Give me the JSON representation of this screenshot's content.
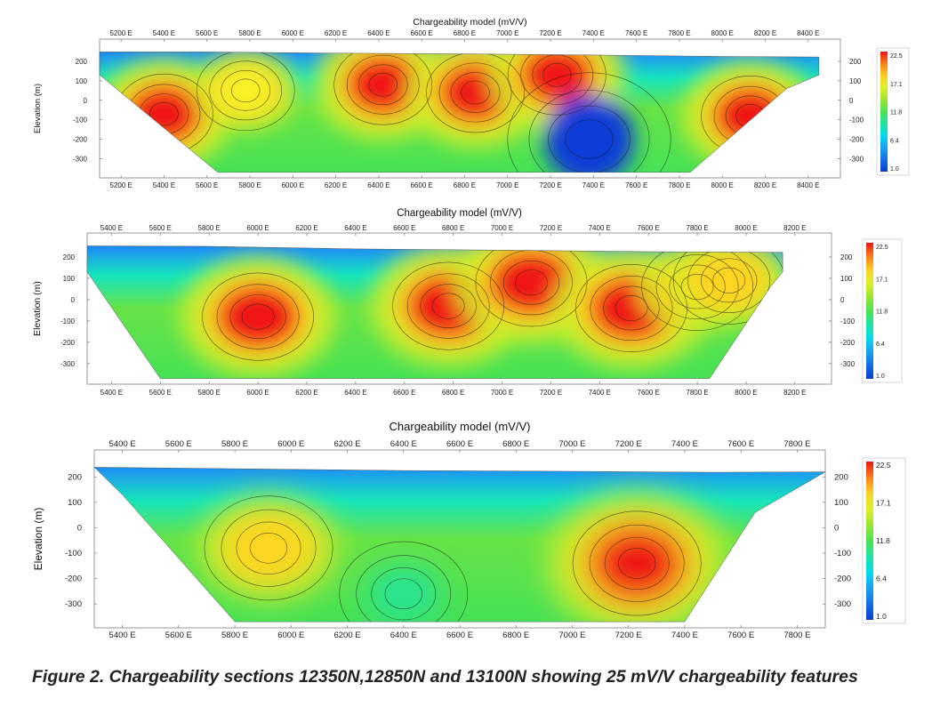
{
  "chart_data": [
    {
      "type": "heatmap",
      "title": "Chargeability model (mV/V)",
      "ylabel": "Elevation (m)",
      "xlim": [
        5100,
        8550
      ],
      "ylim": [
        -380,
        250
      ],
      "x_ticks": [
        "5200 E",
        "5400 E",
        "5600 E",
        "5800 E",
        "6000 E",
        "6200 E",
        "6400 E",
        "6600 E",
        "6800 E",
        "7000 E",
        "7200 E",
        "7400 E",
        "7600 E",
        "7800 E",
        "8000 E",
        "8200 E",
        "8400 E"
      ],
      "y_ticks": [
        "200",
        "100",
        "0",
        "-100",
        "-200",
        "-300"
      ],
      "colorbar": {
        "min": 1.0,
        "max": 22.5,
        "ticks": [
          "22.5",
          "17.1",
          "11.8",
          "6.4",
          "1.0"
        ]
      },
      "surface": [
        [
          5100,
          248
        ],
        [
          5600,
          248
        ],
        [
          6200,
          242
        ],
        [
          6800,
          238
        ],
        [
          7400,
          232
        ],
        [
          8000,
          225
        ],
        [
          8450,
          222
        ]
      ],
      "base": [
        [
          5100,
          130
        ],
        [
          5650,
          -370
        ],
        [
          7850,
          -370
        ],
        [
          8300,
          60
        ],
        [
          8450,
          130
        ]
      ],
      "anomalies": [
        {
          "x": 5400,
          "y": -70,
          "value": 25
        },
        {
          "x": 5780,
          "y": 50,
          "value": 17
        },
        {
          "x": 6420,
          "y": 80,
          "value": 25
        },
        {
          "x": 6850,
          "y": 40,
          "value": 25
        },
        {
          "x": 7230,
          "y": 130,
          "value": 25
        },
        {
          "x": 7380,
          "y": -200,
          "value": 1
        },
        {
          "x": 8130,
          "y": -80,
          "value": 25
        }
      ]
    },
    {
      "type": "heatmap",
      "title": "Chargeability model (mV/V)",
      "ylabel": "Elevation (m)",
      "xlim": [
        5300,
        8350
      ],
      "ylim": [
        -380,
        250
      ],
      "x_ticks": [
        "5400 E",
        "5600 E",
        "5800 E",
        "6000 E",
        "6200 E",
        "6400 E",
        "6600 E",
        "6800 E",
        "7000 E",
        "7200 E",
        "7400 E",
        "7600 E",
        "7800 E",
        "8000 E",
        "8200 E"
      ],
      "y_ticks": [
        "200",
        "100",
        "0",
        "-100",
        "-200",
        "-300"
      ],
      "colorbar": {
        "min": 1.0,
        "max": 22.5,
        "ticks": [
          "22.5",
          "17.1",
          "11.8",
          "6.4",
          "1.0"
        ]
      },
      "surface": [
        [
          5300,
          252
        ],
        [
          5800,
          250
        ],
        [
          6400,
          238
        ],
        [
          7000,
          232
        ],
        [
          7600,
          225
        ],
        [
          8150,
          222
        ]
      ],
      "base": [
        [
          5300,
          130
        ],
        [
          5600,
          -370
        ],
        [
          7850,
          -370
        ],
        [
          8100,
          60
        ],
        [
          8150,
          130
        ]
      ],
      "anomalies": [
        {
          "x": 6000,
          "y": -80,
          "value": 25
        },
        {
          "x": 6780,
          "y": -30,
          "value": 25
        },
        {
          "x": 7120,
          "y": 80,
          "value": 25
        },
        {
          "x": 7530,
          "y": -40,
          "value": 23
        },
        {
          "x": 7800,
          "y": 60,
          "value": 18
        },
        {
          "x": 7930,
          "y": 90,
          "value": 18
        }
      ]
    },
    {
      "type": "heatmap",
      "title": "Chargeability model (mV/V)",
      "ylabel": "Elevation (m)",
      "xlim": [
        5300,
        7900
      ],
      "ylim": [
        -380,
        250
      ],
      "x_ticks": [
        "5400 E",
        "5600 E",
        "5800 E",
        "6000 E",
        "6200 E",
        "6400 E",
        "6600 E",
        "6800 E",
        "7000 E",
        "7200 E",
        "7400 E",
        "7600 E",
        "7800 E"
      ],
      "y_ticks": [
        "200",
        "100",
        "0",
        "-100",
        "-200",
        "-300"
      ],
      "colorbar": {
        "min": 1.0,
        "max": 22.5,
        "ticks": [
          "22.5",
          "17.1",
          "11.8",
          "6.4",
          "1.0"
        ]
      },
      "surface": [
        [
          5300,
          238
        ],
        [
          5800,
          232
        ],
        [
          6400,
          225
        ],
        [
          7000,
          222
        ],
        [
          7500,
          218
        ],
        [
          7900,
          220
        ]
      ],
      "base": [
        [
          5400,
          130
        ],
        [
          5800,
          -370
        ],
        [
          7400,
          -370
        ],
        [
          7650,
          60
        ],
        [
          7760,
          130
        ]
      ],
      "anomalies": [
        {
          "x": 5920,
          "y": -80,
          "value": 18
        },
        {
          "x": 7230,
          "y": -140,
          "value": 25
        },
        {
          "x": 6400,
          "y": -260,
          "value": 10
        }
      ]
    }
  ],
  "caption": "Figure 2. Chargeability sections 12350N,12850N and 13100N showing 25 mV/V chargeability features",
  "colors": {
    "low": "#0a3fd6",
    "mid": "#3ee35a",
    "high": "#f01010"
  }
}
